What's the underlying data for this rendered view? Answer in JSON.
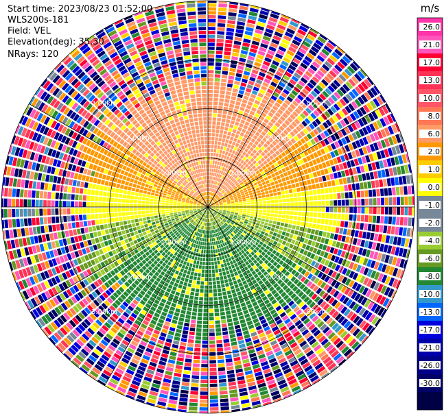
{
  "header": {
    "start_time": "Start time: 2023/08/23 01:52:00",
    "station": "WLS200s-181",
    "field": "Field: VEL",
    "elevation": "Elevation(deg): 35.30",
    "nrays": "NRays: 120"
  },
  "chart_data": {
    "type": "heatmap",
    "projection": "polar-ppi",
    "field": "VEL",
    "unit": "m/s",
    "range_rings_km": [
      1.0,
      2.0,
      3.0
    ],
    "range_ring_labels": [
      "1.00km",
      "2.00km",
      "3.00km"
    ],
    "max_range_km": 4.2,
    "spokes_deg": [
      0,
      30,
      60,
      90,
      120,
      150,
      180,
      210,
      240,
      270,
      300,
      330
    ],
    "nrays": 120,
    "grid": true,
    "valid_data_range_km": [
      0,
      2.6
    ],
    "pattern": {
      "north_half_ms": [
        6.0,
        2.0
      ],
      "south_half_ms": [
        -2.0,
        -8.0
      ],
      "near_east_west_ms": 0.0,
      "beyond_valid_range": "noise (random values across full colour scale)"
    },
    "colorbar": {
      "title": "m/s",
      "levels": [
        26.0,
        21.0,
        17.0,
        13.0,
        10.0,
        8.0,
        6.0,
        2.0,
        1.0,
        0.0,
        -1.0,
        -2.0,
        -4.0,
        -6.0,
        -8.0,
        -10.0,
        -13.0,
        -17.0,
        -21.0,
        -26.0,
        -30.0
      ],
      "tick_labels": [
        "26.0",
        "21.0",
        "17.0",
        "13.0",
        "10.0",
        "8.0",
        "6.0",
        "2.0",
        "1.0",
        "0.0",
        "-1.0",
        "-2.0",
        "-4.0",
        "-6.0",
        "-8.0",
        "-10.0",
        "-13.0",
        "-17.0",
        "-21.0",
        "-26.0",
        "-30.0"
      ],
      "colors": [
        "#ff33aa",
        "#ff55bb",
        "#ff0033",
        "#ff3355",
        "#ff5566",
        "#ff7755",
        "#ff9966",
        "#ff9900",
        "#ffcc00",
        "#ffff00",
        "#778899",
        "#778899",
        "#99cc33",
        "#669922",
        "#228833",
        "#3399cc",
        "#0066ff",
        "#0000dd",
        "#0000aa",
        "#000088",
        "#000066",
        "#000044"
      ]
    }
  }
}
